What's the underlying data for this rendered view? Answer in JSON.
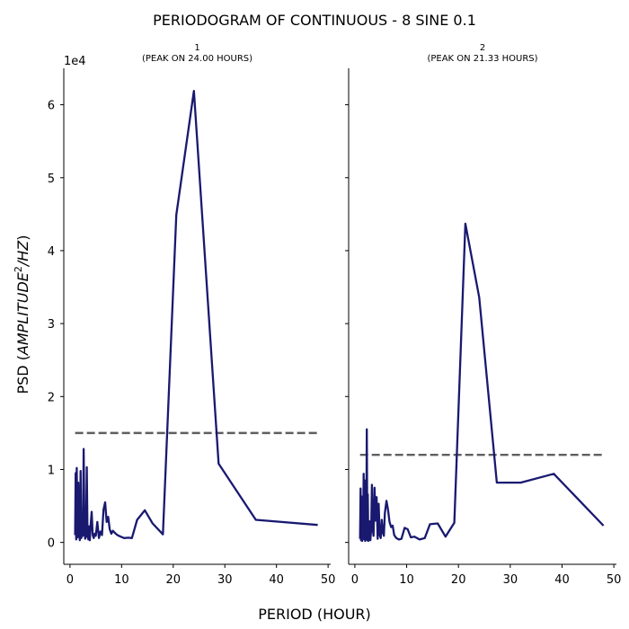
{
  "chart_data": {
    "type": "line",
    "title": "PERIODOGRAM OF CONTINUOUS - 8 SINE 0.1",
    "xlabel": "PERIOD (HOUR)",
    "ylabel_prefix": "PSD (",
    "ylabel_math": "AMPLITUDE",
    "ylabel_sup": "2",
    "ylabel_tail": "/HZ",
    "ylabel_suffix": ")",
    "y_offset_text": "1e4",
    "y_scale": 10000,
    "xlim": [
      -1.2,
      50.5
    ],
    "ylim": [
      -3000,
      65000
    ],
    "x_ticks": [
      0,
      10,
      20,
      30,
      40,
      50
    ],
    "y_ticks": [
      0,
      10000,
      20000,
      30000,
      40000,
      50000,
      60000
    ],
    "line_color": "#191970",
    "threshold_color": "#5f5f5f",
    "panels": [
      {
        "title_line1": "1",
        "title_line2": "(PEAK ON 24.00 HOURS)",
        "threshold": 15000,
        "threshold_x": [
          1.0,
          48.0
        ],
        "series": {
          "x": [
            1.0,
            1.1,
            1.2,
            1.3,
            1.45,
            1.6,
            1.75,
            1.9,
            2.05,
            2.2,
            2.35,
            2.5,
            2.65,
            2.8,
            2.95,
            3.1,
            3.25,
            3.4,
            3.55,
            3.7,
            3.85,
            4.0,
            4.2,
            4.4,
            4.6,
            4.8,
            5.0,
            5.3,
            5.6,
            5.9,
            6.2,
            6.5,
            6.8,
            7.1,
            7.4,
            7.7,
            8.0,
            8.3,
            8.7,
            9.2,
            9.8,
            10.5,
            11.3,
            12.0,
            13.0,
            14.5,
            16.0,
            18.0,
            20.6,
            24.0,
            28.8,
            36.0,
            48.0
          ],
          "y": [
            1000,
            9500,
            400,
            10200,
            700,
            8200,
            1500,
            300,
            9800,
            600,
            1800,
            900,
            12800,
            2000,
            500,
            800,
            10300,
            1200,
            400,
            2200,
            300,
            2400,
            4200,
            1000,
            600,
            1200,
            900,
            2800,
            600,
            1500,
            1000,
            4500,
            5500,
            2800,
            3500,
            1800,
            1200,
            1600,
            1300,
            1000,
            800,
            600,
            650,
            600,
            3100,
            4400,
            2600,
            1100,
            44900,
            61900,
            10800,
            3100,
            2400
          ]
        }
      },
      {
        "title_line1": "2",
        "title_line2": "(PEAK ON 21.33 HOURS)",
        "threshold": 12000,
        "threshold_x": [
          1.0,
          48.0
        ],
        "series": {
          "x": [
            1.0,
            1.1,
            1.2,
            1.3,
            1.4,
            1.5,
            1.6,
            1.7,
            1.8,
            1.9,
            2.0,
            2.1,
            2.2,
            2.3,
            2.4,
            2.5,
            2.6,
            2.7,
            2.8,
            2.9,
            3.0,
            3.15,
            3.3,
            3.45,
            3.6,
            3.8,
            4.0,
            4.2,
            4.4,
            4.6,
            4.8,
            5.0,
            5.2,
            5.4,
            5.6,
            5.8,
            6.1,
            6.4,
            6.7,
            7.0,
            7.3,
            7.6,
            8.0,
            8.5,
            9.0,
            9.6,
            10.2,
            10.8,
            11.5,
            12.5,
            13.5,
            14.5,
            16.0,
            17.5,
            19.2,
            21.33,
            24.0,
            27.4,
            32.0,
            38.4,
            48.0
          ],
          "y": [
            500,
            7400,
            300,
            6300,
            200,
            5800,
            600,
            9400,
            400,
            8500,
            200,
            7800,
            500,
            15500,
            300,
            6600,
            200,
            2500,
            600,
            2900,
            300,
            2000,
            7900,
            1800,
            900,
            7500,
            3000,
            6200,
            500,
            5300,
            1000,
            600,
            3100,
            1400,
            900,
            4000,
            5700,
            4500,
            2800,
            2100,
            2300,
            1000,
            600,
            400,
            500,
            2000,
            1800,
            700,
            800,
            400,
            600,
            2500,
            2600,
            800,
            2700,
            43700,
            33600,
            8200,
            8200,
            9400,
            2300
          ]
        }
      }
    ]
  }
}
